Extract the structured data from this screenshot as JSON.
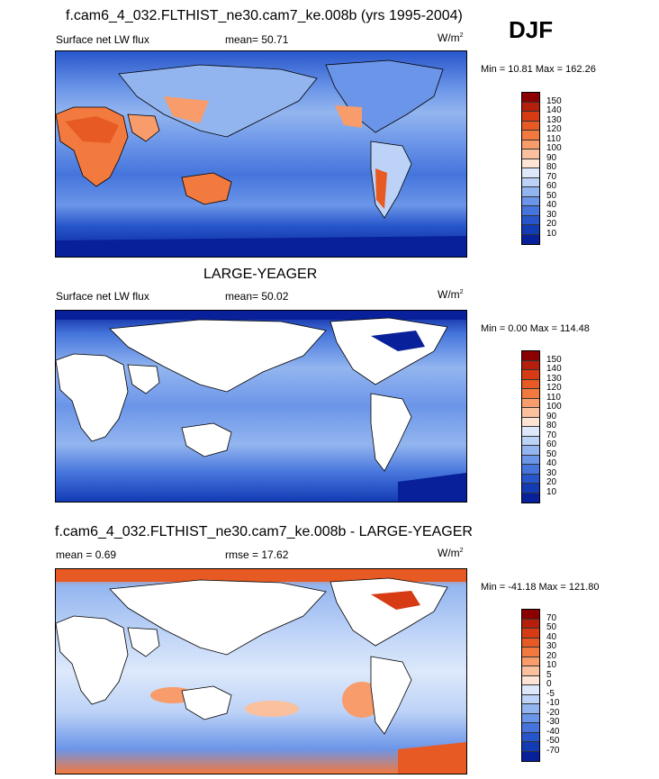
{
  "season": "DJF",
  "panels": [
    {
      "title": "f.cam6_4_032.FLTHIST_ne30.cam7_ke.008b (yrs 1995-2004)",
      "left_label": "Surface net LW flux",
      "stat_label": "mean=",
      "stat_value": "50.71",
      "units": "W/m",
      "units_sup": "2",
      "minmax": "Min =  10.81 Max = 162.26",
      "colorbar_labels": [
        "150",
        "140",
        "130",
        "120",
        "110",
        "100",
        "90",
        "80",
        "70",
        "60",
        "50",
        "40",
        "30",
        "20",
        "10"
      ],
      "colorbar_colors": [
        "#8b0000",
        "#b5200c",
        "#d63b14",
        "#e85a23",
        "#f27a3f",
        "#f79c6a",
        "#fbc09e",
        "#fde4d4",
        "#dde9fb",
        "#bcd2f7",
        "#93b5ef",
        "#6b95e8",
        "#4575dc",
        "#2756cb",
        "#123bb4",
        "#08209a"
      ],
      "land_masked": false
    },
    {
      "title": "LARGE-YEAGER",
      "left_label": "Surface net LW flux",
      "stat_label": "mean=",
      "stat_value": "50.02",
      "units": "W/m",
      "units_sup": "2",
      "minmax": "Min =   0.00 Max = 114.48",
      "colorbar_labels": [
        "150",
        "140",
        "130",
        "120",
        "110",
        "100",
        "90",
        "80",
        "70",
        "60",
        "50",
        "40",
        "30",
        "20",
        "10"
      ],
      "colorbar_colors": [
        "#8b0000",
        "#b5200c",
        "#d63b14",
        "#e85a23",
        "#f27a3f",
        "#f79c6a",
        "#fbc09e",
        "#fde4d4",
        "#dde9fb",
        "#bcd2f7",
        "#93b5ef",
        "#6b95e8",
        "#4575dc",
        "#2756cb",
        "#123bb4",
        "#08209a"
      ],
      "land_masked": true
    },
    {
      "title": "f.cam6_4_032.FLTHIST_ne30.cam7_ke.008b - LARGE-YEAGER",
      "left_label": "mean =   0.69",
      "stat_label": "rmse =",
      "stat_value": "17.62",
      "units": "W/m",
      "units_sup": "2",
      "minmax": "Min = -41.18 Max = 121.80",
      "colorbar_labels": [
        "70",
        "50",
        "40",
        "30",
        "20",
        "10",
        "5",
        "0",
        "-5",
        "-10",
        "-20",
        "-30",
        "-40",
        "-50",
        "-70"
      ],
      "colorbar_colors": [
        "#8b0000",
        "#b5200c",
        "#d63b14",
        "#e85a23",
        "#f27a3f",
        "#f79c6a",
        "#fbc09e",
        "#fde4d4",
        "#dde9fb",
        "#bcd2f7",
        "#93b5ef",
        "#6b95e8",
        "#4575dc",
        "#2756cb",
        "#123bb4",
        "#08209a"
      ],
      "land_masked": true
    }
  ]
}
